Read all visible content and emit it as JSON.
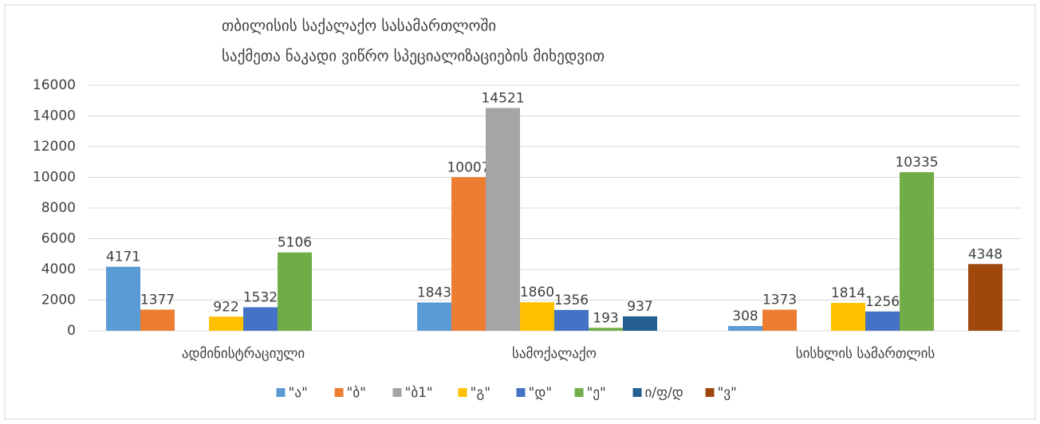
{
  "chart_data": {
    "type": "bar",
    "title": "თბილისის საქალაქო სასამართლოში",
    "subtitle": "საქმეთა ნაკადი ვიწრო სპეციალიზაციების მიხედვით",
    "categories": [
      "ადმინისტრაციული",
      "სამოქალაქო",
      "სისხლის სამართლის"
    ],
    "series": [
      {
        "name": "\"ა\"",
        "color": "#5b9bd5",
        "values": [
          4171,
          1843,
          308
        ]
      },
      {
        "name": "\"ბ\"",
        "color": "#ed7d31",
        "values": [
          1377,
          10007,
          1373
        ]
      },
      {
        "name": "\"ბ1\"",
        "color": "#a5a5a5",
        "values": [
          null,
          14521,
          null
        ]
      },
      {
        "name": "\"გ\"",
        "color": "#ffc000",
        "values": [
          922,
          1860,
          1814
        ]
      },
      {
        "name": "\"დ\"",
        "color": "#4472c4",
        "values": [
          1532,
          1356,
          1256
        ]
      },
      {
        "name": "\"ე\"",
        "color": "#70ad47",
        "values": [
          5106,
          193,
          10335
        ]
      },
      {
        "name": "ი/ფ/დ",
        "color": "#255e91",
        "values": [
          null,
          937,
          null
        ]
      },
      {
        "name": "\"ვ\"",
        "color": "#9e480e",
        "values": [
          null,
          null,
          4348
        ]
      }
    ],
    "ylim": [
      0,
      16000
    ],
    "yticks": [
      0,
      2000,
      4000,
      6000,
      8000,
      10000,
      12000,
      14000,
      16000
    ],
    "grid": true,
    "legend": "bottom"
  }
}
